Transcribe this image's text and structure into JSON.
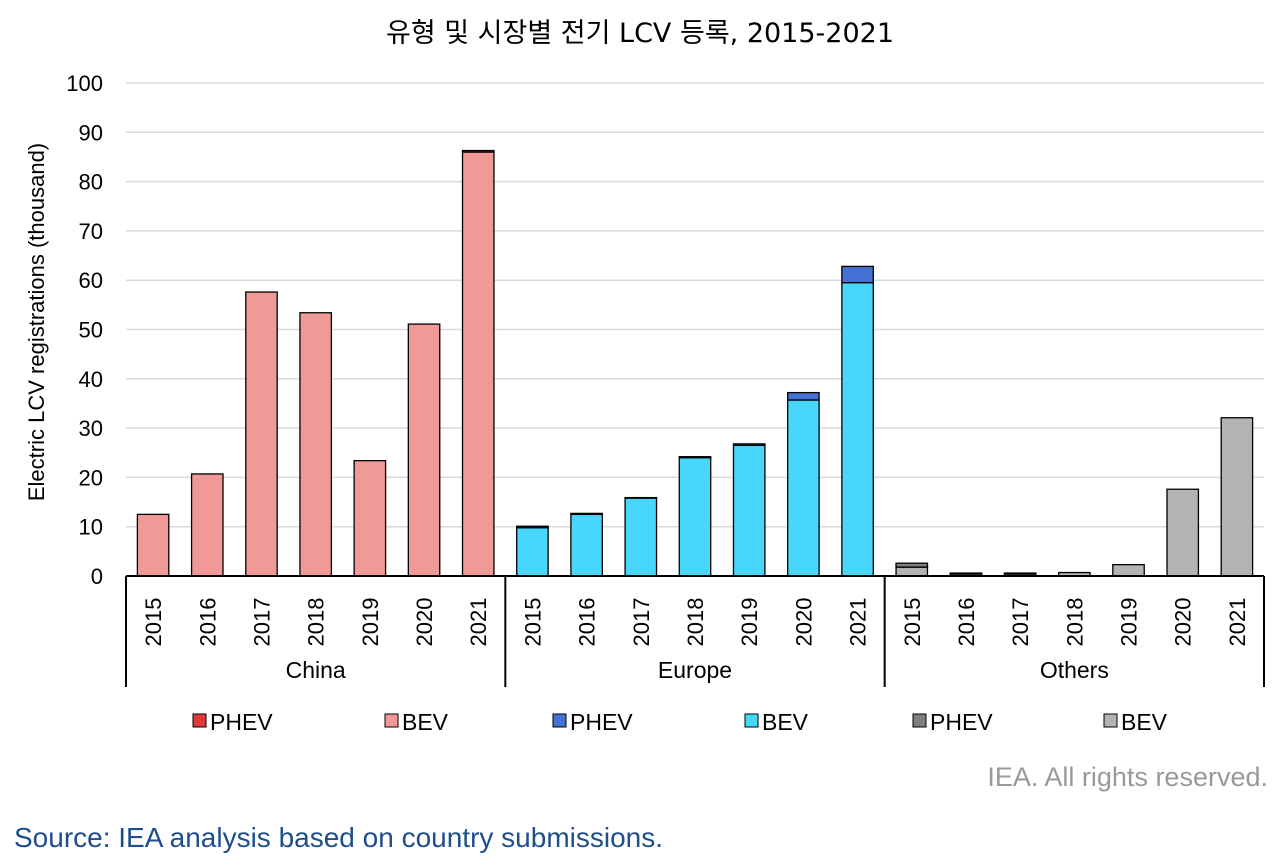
{
  "chart_data": {
    "type": "bar",
    "stacked": true,
    "title": "유형 및 시장별 전기 LCV 등록, 2015-2021",
    "ylabel": "Electric LCV registrations (thousand)",
    "ylim": [
      0,
      100
    ],
    "yticks": [
      0,
      10,
      20,
      30,
      40,
      50,
      60,
      70,
      80,
      90,
      100
    ],
    "grid": true,
    "legend_position": "bottom",
    "categories": [
      "2015",
      "2016",
      "2017",
      "2018",
      "2019",
      "2020",
      "2021"
    ],
    "groups": [
      {
        "name": "China",
        "series": [
          {
            "name": "BEV",
            "color": "#f09a98",
            "values": [
              12.5,
              20.7,
              57.6,
              53.4,
              23.4,
              51.1,
              86.0
            ]
          },
          {
            "name": "PHEV",
            "color": "#e03b3b",
            "values": [
              0,
              0,
              0,
              0,
              0,
              0,
              0.3
            ]
          }
        ]
      },
      {
        "name": "Europe",
        "series": [
          {
            "name": "BEV",
            "color": "#48d6fa",
            "values": [
              9.8,
              12.5,
              15.8,
              24.0,
              26.5,
              35.7,
              59.5
            ]
          },
          {
            "name": "PHEV",
            "color": "#4472d4",
            "values": [
              0.3,
              0.2,
              0.1,
              0.2,
              0.3,
              1.5,
              3.3
            ]
          }
        ]
      },
      {
        "name": "Others",
        "series": [
          {
            "name": "BEV",
            "color": "#b3b3b3",
            "values": [
              1.8,
              0.4,
              0.4,
              0.7,
              2.3,
              17.6,
              32.1
            ]
          },
          {
            "name": "PHEV",
            "color": "#7f7f7f",
            "values": [
              0.8,
              0.2,
              0.2,
              0,
              0,
              0,
              0
            ]
          }
        ]
      }
    ]
  },
  "legend": [
    {
      "label": "PHEV",
      "color": "#e03b3b"
    },
    {
      "label": "BEV",
      "color": "#f09a98"
    },
    {
      "label": "PHEV",
      "color": "#4472d4"
    },
    {
      "label": "BEV",
      "color": "#48d6fa"
    },
    {
      "label": "PHEV",
      "color": "#7f7f7f"
    },
    {
      "label": "BEV",
      "color": "#b3b3b3"
    }
  ],
  "credit": "IEA. All rights reserved.",
  "source": "Source: IEA analysis based on country submissions."
}
